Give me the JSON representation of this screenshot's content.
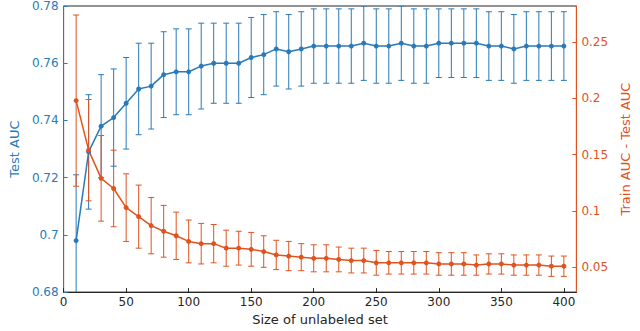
{
  "chart_data": {
    "type": "line",
    "x_label": "Size of unlabeled set",
    "y_label": "Test AUC",
    "y2_label": "Train AUC - Test AUC",
    "grid": false,
    "x": [
      10,
      20,
      30,
      40,
      50,
      60,
      70,
      80,
      90,
      100,
      110,
      120,
      130,
      140,
      150,
      160,
      170,
      180,
      190,
      200,
      210,
      220,
      230,
      240,
      250,
      260,
      270,
      280,
      290,
      300,
      310,
      320,
      330,
      340,
      350,
      360,
      370,
      380,
      390,
      400
    ],
    "xlim": [
      0,
      410
    ],
    "xticks": [
      0,
      50,
      100,
      150,
      200,
      250,
      300,
      350,
      400
    ],
    "ylim": [
      0.68,
      0.78
    ],
    "yticks": [
      0.68,
      0.7,
      0.72,
      0.74,
      0.76,
      0.78
    ],
    "y2lim": [
      0.028,
      0.282
    ],
    "y2ticks": [
      0.05,
      0.1,
      0.15,
      0.2,
      0.25
    ],
    "series": [
      {
        "color": "#2a7ab9",
        "marker": "circle",
        "line_style": "solid",
        "values": [
          0.698,
          0.729,
          0.738,
          0.741,
          0.746,
          0.751,
          0.752,
          0.756,
          0.757,
          0.757,
          0.759,
          0.76,
          0.76,
          0.76,
          0.762,
          0.763,
          0.765,
          0.764,
          0.765,
          0.766,
          0.766,
          0.766,
          0.766,
          0.767,
          0.766,
          0.766,
          0.767,
          0.766,
          0.766,
          0.767,
          0.767,
          0.767,
          0.767,
          0.766,
          0.766,
          0.765,
          0.766,
          0.766,
          0.766,
          0.766
        ],
        "errors": [
          0.023,
          0.02,
          0.018,
          0.017,
          0.016,
          0.016,
          0.015,
          0.015,
          0.015,
          0.015,
          0.015,
          0.014,
          0.014,
          0.014,
          0.014,
          0.014,
          0.013,
          0.013,
          0.013,
          0.013,
          0.013,
          0.013,
          0.013,
          0.013,
          0.013,
          0.013,
          0.013,
          0.013,
          0.013,
          0.012,
          0.012,
          0.012,
          0.012,
          0.012,
          0.012,
          0.012,
          0.012,
          0.012,
          0.012,
          0.012
        ]
      },
      {
        "color": "#e0531f",
        "marker": "circle",
        "line_style": "solid",
        "axis": "y2",
        "values": [
          0.198,
          0.154,
          0.129,
          0.12,
          0.103,
          0.095,
          0.087,
          0.082,
          0.078,
          0.073,
          0.071,
          0.071,
          0.067,
          0.067,
          0.066,
          0.064,
          0.061,
          0.06,
          0.059,
          0.058,
          0.058,
          0.057,
          0.056,
          0.056,
          0.054,
          0.054,
          0.054,
          0.054,
          0.054,
          0.053,
          0.053,
          0.053,
          0.052,
          0.053,
          0.053,
          0.052,
          0.052,
          0.052,
          0.051,
          0.051
        ],
        "errors": [
          0.076,
          0.045,
          0.038,
          0.034,
          0.03,
          0.028,
          0.025,
          0.023,
          0.021,
          0.019,
          0.018,
          0.017,
          0.016,
          0.015,
          0.015,
          0.014,
          0.013,
          0.013,
          0.012,
          0.012,
          0.012,
          0.011,
          0.011,
          0.011,
          0.011,
          0.01,
          0.01,
          0.01,
          0.01,
          0.01,
          0.01,
          0.01,
          0.009,
          0.009,
          0.009,
          0.009,
          0.009,
          0.009,
          0.009,
          0.009
        ]
      }
    ]
  }
}
